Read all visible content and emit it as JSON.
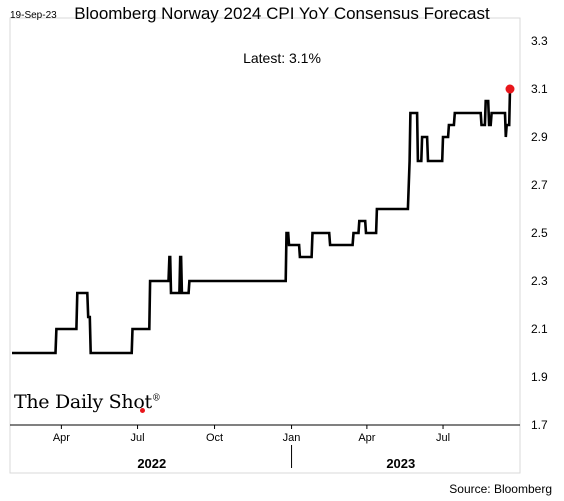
{
  "date_stamp": "19-Sep-23",
  "logo": {
    "text": "The Daily Shot",
    "mark": "®"
  },
  "source": "Source: Bloomberg",
  "colors": {
    "line": "#000000",
    "highlight": "#e8161b",
    "frame": "#d9d9d9"
  },
  "chart_data": {
    "type": "line",
    "title": "Bloomberg Norway 2024 CPI YoY Consensus Forecast",
    "subtitle": "Latest:  3.1%",
    "y_axis": {
      "position": "right",
      "range": [
        1.7,
        3.3
      ],
      "ticks": [
        3.3,
        3.1,
        2.9,
        2.7,
        2.5,
        2.3,
        2.1,
        1.9,
        1.7
      ],
      "tick_labels": [
        "3.3",
        "3.1",
        "2.9",
        "2.7",
        "2.5",
        "2.3",
        "2.1",
        "1.9",
        "1.7"
      ]
    },
    "x_axis": {
      "range": [
        "2022-02-01",
        "2023-09-19"
      ],
      "ticks": [
        {
          "date": "2022-04-01",
          "label": "Apr"
        },
        {
          "date": "2022-07-01",
          "label": "Jul"
        },
        {
          "date": "2022-10-01",
          "label": "Oct"
        },
        {
          "date": "2023-01-01",
          "label": "Jan"
        },
        {
          "date": "2023-04-01",
          "label": "Apr"
        },
        {
          "date": "2023-07-01",
          "label": "Jul"
        }
      ],
      "years": [
        {
          "label": "2022",
          "from": "2022-02-01",
          "to": "2023-01-01"
        },
        {
          "label": "2023",
          "from": "2023-01-01",
          "to": "2023-09-19"
        }
      ]
    },
    "grid": false,
    "legend": "none",
    "series": [
      {
        "values": [
          [
            "2022-02-01",
            2.0
          ],
          [
            "2022-03-25",
            2.0
          ],
          [
            "2022-03-26",
            2.1
          ],
          [
            "2022-04-19",
            2.1
          ],
          [
            "2022-04-20",
            2.25
          ],
          [
            "2022-05-02",
            2.25
          ],
          [
            "2022-05-03",
            2.15
          ],
          [
            "2022-05-05",
            2.15
          ],
          [
            "2022-05-06",
            2.0
          ],
          [
            "2022-06-24",
            2.0
          ],
          [
            "2022-06-25",
            2.1
          ],
          [
            "2022-07-15",
            2.1
          ],
          [
            "2022-07-16",
            2.3
          ],
          [
            "2022-08-07",
            2.3
          ],
          [
            "2022-08-08",
            2.4
          ],
          [
            "2022-08-09",
            2.4
          ],
          [
            "2022-08-10",
            2.25
          ],
          [
            "2022-08-20",
            2.25
          ],
          [
            "2022-08-21",
            2.4
          ],
          [
            "2022-08-22",
            2.4
          ],
          [
            "2022-08-23",
            2.25
          ],
          [
            "2022-08-31",
            2.25
          ],
          [
            "2022-09-01",
            2.3
          ],
          [
            "2022-12-25",
            2.3
          ],
          [
            "2022-12-26",
            2.5
          ],
          [
            "2022-12-28",
            2.5
          ],
          [
            "2022-12-29",
            2.45
          ],
          [
            "2023-01-10",
            2.45
          ],
          [
            "2023-01-11",
            2.4
          ],
          [
            "2023-01-25",
            2.4
          ],
          [
            "2023-01-26",
            2.5
          ],
          [
            "2023-02-15",
            2.5
          ],
          [
            "2023-02-16",
            2.45
          ],
          [
            "2023-03-15",
            2.45
          ],
          [
            "2023-03-16",
            2.5
          ],
          [
            "2023-03-22",
            2.5
          ],
          [
            "2023-03-23",
            2.55
          ],
          [
            "2023-03-30",
            2.55
          ],
          [
            "2023-03-31",
            2.5
          ],
          [
            "2023-04-12",
            2.5
          ],
          [
            "2023-04-13",
            2.6
          ],
          [
            "2023-05-20",
            2.6
          ],
          [
            "2023-05-22",
            2.8
          ],
          [
            "2023-05-23",
            3.0
          ],
          [
            "2023-05-31",
            3.0
          ],
          [
            "2023-06-01",
            2.8
          ],
          [
            "2023-06-05",
            2.8
          ],
          [
            "2023-06-06",
            2.9
          ],
          [
            "2023-06-12",
            2.9
          ],
          [
            "2023-06-13",
            2.8
          ],
          [
            "2023-06-30",
            2.8
          ],
          [
            "2023-07-01",
            2.9
          ],
          [
            "2023-07-07",
            2.9
          ],
          [
            "2023-07-08",
            2.95
          ],
          [
            "2023-07-14",
            2.95
          ],
          [
            "2023-07-15",
            3.0
          ],
          [
            "2023-08-15",
            3.0
          ],
          [
            "2023-08-16",
            2.95
          ],
          [
            "2023-08-20",
            2.95
          ],
          [
            "2023-08-21",
            3.05
          ],
          [
            "2023-08-24",
            3.05
          ],
          [
            "2023-08-25",
            2.95
          ],
          [
            "2023-08-27",
            2.95
          ],
          [
            "2023-08-28",
            3.0
          ],
          [
            "2023-09-13",
            3.0
          ],
          [
            "2023-09-14",
            2.9
          ],
          [
            "2023-09-15",
            2.95
          ],
          [
            "2023-09-18",
            2.95
          ],
          [
            "2023-09-19",
            3.1
          ]
        ]
      }
    ],
    "latest_point": {
      "date": "2023-09-19",
      "value": 3.1
    }
  }
}
